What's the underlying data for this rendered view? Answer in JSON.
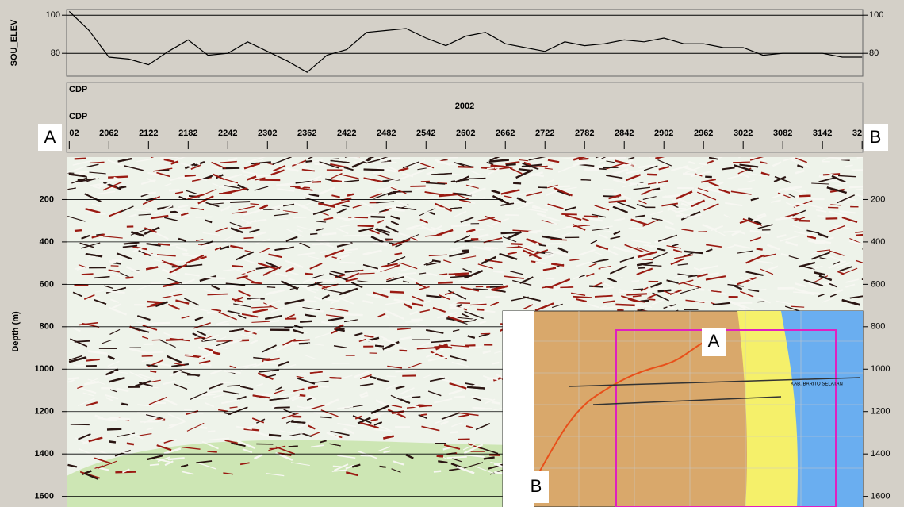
{
  "chart_data": [
    {
      "type": "line",
      "ylabel": "SOU_ELEV",
      "x": [
        2002,
        2032,
        2062,
        2092,
        2122,
        2152,
        2182,
        2212,
        2242,
        2272,
        2302,
        2332,
        2362,
        2392,
        2422,
        2452,
        2482,
        2512,
        2542,
        2572,
        2602,
        2632,
        2662,
        2692,
        2722,
        2752,
        2782,
        2812,
        2842,
        2872,
        2902,
        2932,
        2962,
        2992,
        3022,
        3052,
        3082,
        3112,
        3142,
        3172,
        3202
      ],
      "values": [
        102,
        92,
        78,
        77,
        74,
        81,
        87,
        79,
        80,
        86,
        81,
        76,
        70,
        79,
        82,
        91,
        92,
        93,
        88,
        84,
        89,
        91,
        85,
        83,
        81,
        86,
        84,
        85,
        87,
        86,
        88,
        85,
        85,
        83,
        83,
        79,
        80,
        80,
        80,
        78,
        78
      ],
      "color": "#000000",
      "xlim": [
        1998,
        3203
      ],
      "ylim": [
        68,
        103
      ],
      "yticks": [
        80,
        100
      ],
      "grid": true
    },
    {
      "type": "seismic",
      "xlabel": "CDP",
      "subtitle": "2002",
      "ylabel": "Depth (m)",
      "xlim": [
        1998,
        3203
      ],
      "ylim": [
        0,
        1650
      ],
      "y_inverted": true,
      "xticks": [
        {
          "value": 2002,
          "label": "02"
        },
        2062,
        2122,
        2182,
        2242,
        2302,
        2362,
        2422,
        2482,
        2542,
        2602,
        2662,
        2722,
        2782,
        2842,
        2902,
        2962,
        3022,
        3082,
        3142,
        {
          "value": 3202,
          "label": "32"
        }
      ],
      "yticks": [
        200,
        400,
        600,
        800,
        1000,
        1200,
        1400,
        1600
      ],
      "grid": true
    }
  ],
  "labels": {
    "left": "A",
    "right": "B"
  },
  "inset_map": {
    "point_a": "A",
    "point_b": "B",
    "region": "KAB. BARITO SELATAN"
  }
}
